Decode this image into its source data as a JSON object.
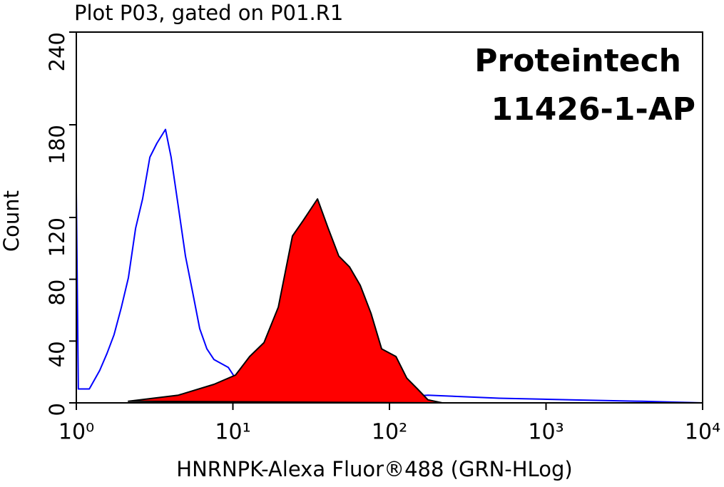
{
  "chart_data": {
    "type": "line",
    "title": "Plot P03, gated on P01.R1",
    "annotations": [
      "Proteintech",
      "11426-1-AP"
    ],
    "x_label": "HNRNPK-Alexa Fluor®488 (GRN-HLog)",
    "y_label": "Count",
    "x_scale": "log",
    "xlim": [
      1,
      10000
    ],
    "xticks": [
      {
        "value": 1,
        "label": "10⁰"
      },
      {
        "value": 10,
        "label": "10¹"
      },
      {
        "value": 100,
        "label": "10²"
      },
      {
        "value": 1000,
        "label": "10³"
      },
      {
        "value": 10000,
        "label": "10⁴"
      }
    ],
    "ylim": [
      0,
      240
    ],
    "yticks": [
      0,
      40,
      80,
      120,
      180,
      240
    ],
    "series": [
      {
        "color": "#0000ff",
        "fill": false,
        "x": [
          1,
          1.03,
          1.21,
          1.41,
          1.57,
          1.74,
          1.94,
          2.15,
          2.39,
          2.65,
          2.95,
          3.27,
          3.71,
          4.03,
          4.48,
          4.98,
          5.52,
          6.14,
          6.82,
          7.57,
          9.34,
          11.5,
          14.2,
          21.6,
          61.7,
          176,
          503,
          1436,
          4100,
          10000
        ],
        "values": [
          137,
          9,
          9,
          21,
          32,
          44,
          62,
          81,
          113,
          132,
          159,
          168,
          177,
          159,
          127,
          95,
          72,
          48,
          35,
          28,
          23,
          9,
          5,
          2,
          2,
          5,
          3,
          2,
          1,
          0
        ]
      },
      {
        "color": "#ff0000",
        "line_color": "#000000",
        "fill": true,
        "x": [
          2.15,
          4.48,
          7.57,
          10.4,
          12.8,
          15.8,
          19.5,
          24,
          28.1,
          34.7,
          40.6,
          47.5,
          55.6,
          65.1,
          76.2,
          89.1,
          110,
          129,
          151,
          176,
          217
        ],
        "values": [
          1,
          5,
          12,
          18,
          30,
          39,
          62,
          108,
          118,
          132,
          113,
          95,
          88,
          76,
          58,
          35,
          30,
          16,
          9,
          2,
          0
        ]
      }
    ]
  }
}
